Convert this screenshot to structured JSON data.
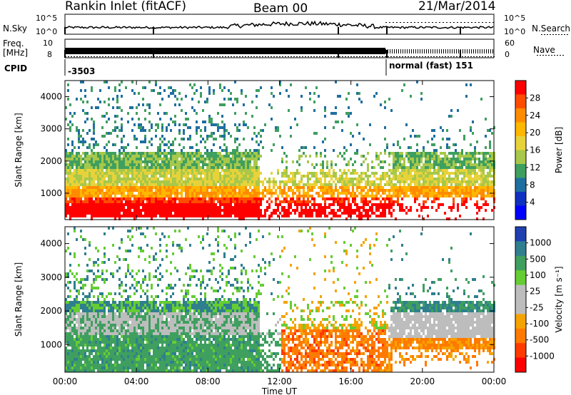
{
  "header": {
    "station": "Rankin Inlet (fitACF)",
    "beam": "Beam 00",
    "date": "21/Mar/2014"
  },
  "param_strip": {
    "nsky_label": "N.Sky",
    "nsearch_label": "N.Search",
    "nsky_ticks": [
      "10^5",
      "10^0"
    ],
    "nsearch_ticks": [
      "10^5",
      "10^0"
    ],
    "freq_label_1": "Freq.",
    "freq_label_2": "[MHz]",
    "freq_ticks": [
      "10",
      "8"
    ],
    "nave_label": "Nave",
    "nave_ticks": [
      "60",
      "0"
    ],
    "cpid_label": "CPID",
    "cpid_left": "-3503",
    "cpid_right": "normal (fast) 151"
  },
  "chart_data": [
    {
      "type": "heatmap",
      "name": "power",
      "ylabel": "Slant Range [km]",
      "yticks": [
        1000,
        2000,
        3000,
        4000
      ],
      "ylim": [
        180,
        4500
      ],
      "xlim_hours": [
        0,
        24
      ],
      "colorbar_label": "Power [dB]",
      "colorbar_ticks": [
        "28",
        "24",
        "20",
        "16",
        "12",
        "8",
        "4"
      ],
      "colorbar_colors": [
        "#ff0000",
        "#ff4d00",
        "#ff8c00",
        "#ffb700",
        "#e8d23a",
        "#a7c84a",
        "#3f9f5f",
        "#1f6fa0",
        "#1030c0",
        "#0000ff"
      ]
    },
    {
      "type": "heatmap",
      "name": "velocity",
      "ylabel": "Slant Range [km]",
      "yticks": [
        1000,
        2000,
        3000,
        4000
      ],
      "ylim": [
        180,
        4500
      ],
      "xlim_hours": [
        0,
        24
      ],
      "colorbar_label": "Velocity [m s⁻¹]",
      "colorbar_ticks": [
        "1000",
        "500",
        "100",
        "25",
        "-25",
        "-100",
        "-500",
        "-1000"
      ],
      "colorbar_colors": [
        "#2040b0",
        "#2f7f8f",
        "#3f9f5f",
        "#66cc33",
        "#bdbdbd",
        "#bdbdbd",
        "#f5a300",
        "#ff7a00",
        "#ff3a00",
        "#ff0000"
      ]
    }
  ],
  "x_axis": {
    "ticks": [
      "00:00",
      "04:00",
      "08:00",
      "12:00",
      "16:00",
      "20:00",
      "00:00"
    ],
    "label": "Time UT"
  }
}
